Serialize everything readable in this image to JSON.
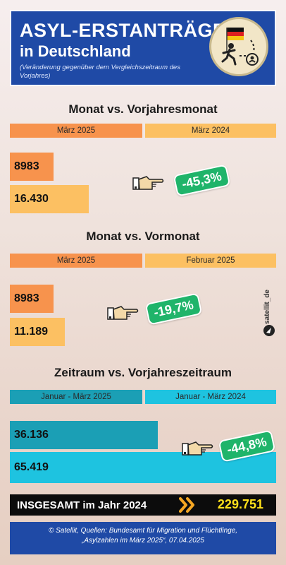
{
  "header": {
    "title_line1": "ASYL-ERSTANTRÄGE",
    "title_line2": "in Deutschland",
    "subtitle": "(Veränderung gegenüber dem Vergleichszeitraum des Vorjahres)"
  },
  "sections": [
    {
      "title": "Monat vs. Vorjahresmonat",
      "label_a": "März 2025",
      "label_b": "März 2024",
      "value_a": "8983",
      "value_b": "16.430",
      "change": "-45,3%"
    },
    {
      "title": "Monat vs. Vormonat",
      "label_a": "März 2025",
      "label_b": "Februar 2025",
      "value_a": "8983",
      "value_b": "11.189",
      "change": "-19,7%"
    },
    {
      "title": "Zeitraum vs. Vorjahreszeitraum",
      "label_a": "Januar - März 2025",
      "label_b": "Januar - März 2024",
      "value_a": "36.136",
      "value_b": "65.419",
      "change": "-44,8%"
    }
  ],
  "total": {
    "label": "INSGESAMT im Jahr 2024",
    "value": "229.751"
  },
  "side_credit": "satellit_de",
  "footer": {
    "line1": "© Satellit, Quellen: Bundesamt für Migration und Flüchtlinge,",
    "line2": "„Asylzahlen im März 2025“, 07.04.2025"
  },
  "colors": {
    "header_bg": "#1f4aa6",
    "orange_dark": "#f7934d",
    "orange_light": "#fcc062",
    "teal_dark": "#1b9fb5",
    "cyan_light": "#1ec3e0",
    "badge_green": "#1fb46a",
    "total_value": "#ffe11a"
  },
  "icons": [
    "germany-flag-icon",
    "refugee-icon",
    "pointing-hand-icon",
    "arrow-chevron-icon",
    "satellite-logo-icon"
  ]
}
